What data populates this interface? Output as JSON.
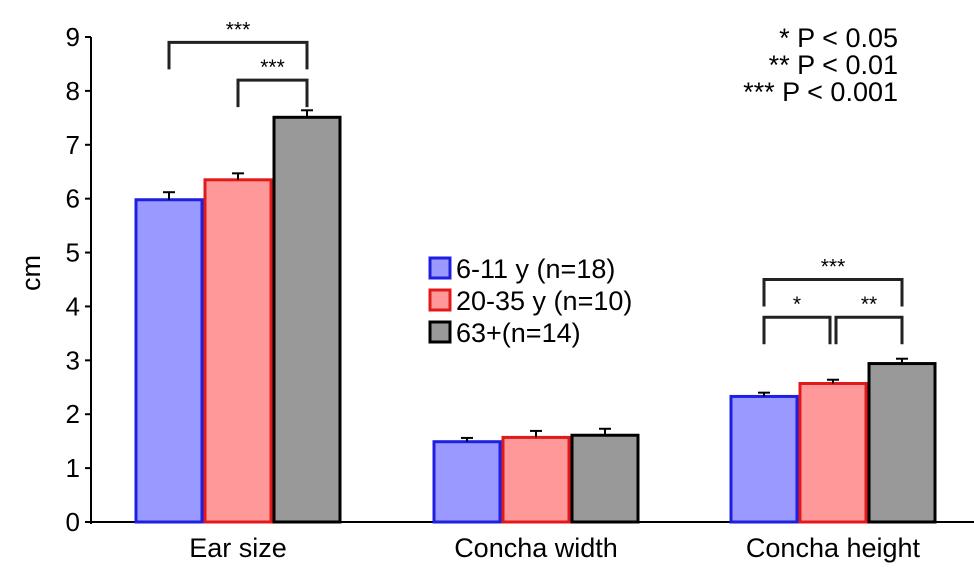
{
  "chart_data": {
    "type": "bar",
    "ylabel": "cm",
    "ylim": [
      0,
      9
    ],
    "yticks": [
      "0",
      "1",
      "2",
      "3",
      "4",
      "5",
      "6",
      "7",
      "8",
      "9"
    ],
    "categories": [
      "Ear size",
      "Concha width",
      "Concha height"
    ],
    "series": [
      {
        "name": "6-11 y (n=18)",
        "values": [
          5.98,
          1.49,
          2.33
        ],
        "errors": [
          0.14,
          0.07,
          0.07
        ],
        "fill": "#9999ff",
        "stroke": "#1f1fe0"
      },
      {
        "name": "20-35 y (n=10)",
        "values": [
          6.35,
          1.57,
          2.57
        ],
        "errors": [
          0.12,
          0.12,
          0.07
        ],
        "fill": "#ff9999",
        "stroke": "#e01a1a"
      },
      {
        "name": "63+(n=14)",
        "values": [
          7.51,
          1.61,
          2.94
        ],
        "errors": [
          0.13,
          0.12,
          0.09
        ],
        "fill": "#999999",
        "stroke": "#000000"
      }
    ],
    "significance": [
      {
        "category": 0,
        "from": 0,
        "to": 2,
        "label": "***",
        "level": 8.9
      },
      {
        "category": 0,
        "from": 1,
        "to": 2,
        "label": "***",
        "level": 8.2
      },
      {
        "category": 2,
        "from": 0,
        "to": 2,
        "label": "***",
        "level": 4.5
      },
      {
        "category": 2,
        "from": 0,
        "to": 1,
        "label": "*",
        "level": 3.8
      },
      {
        "category": 2,
        "from": 1,
        "to": 2,
        "label": "**",
        "level": 3.8
      }
    ],
    "p_notes": [
      "* P < 0.05",
      "** P < 0.01",
      "*** P < 0.001"
    ],
    "legend_position": "center",
    "grid": false
  }
}
